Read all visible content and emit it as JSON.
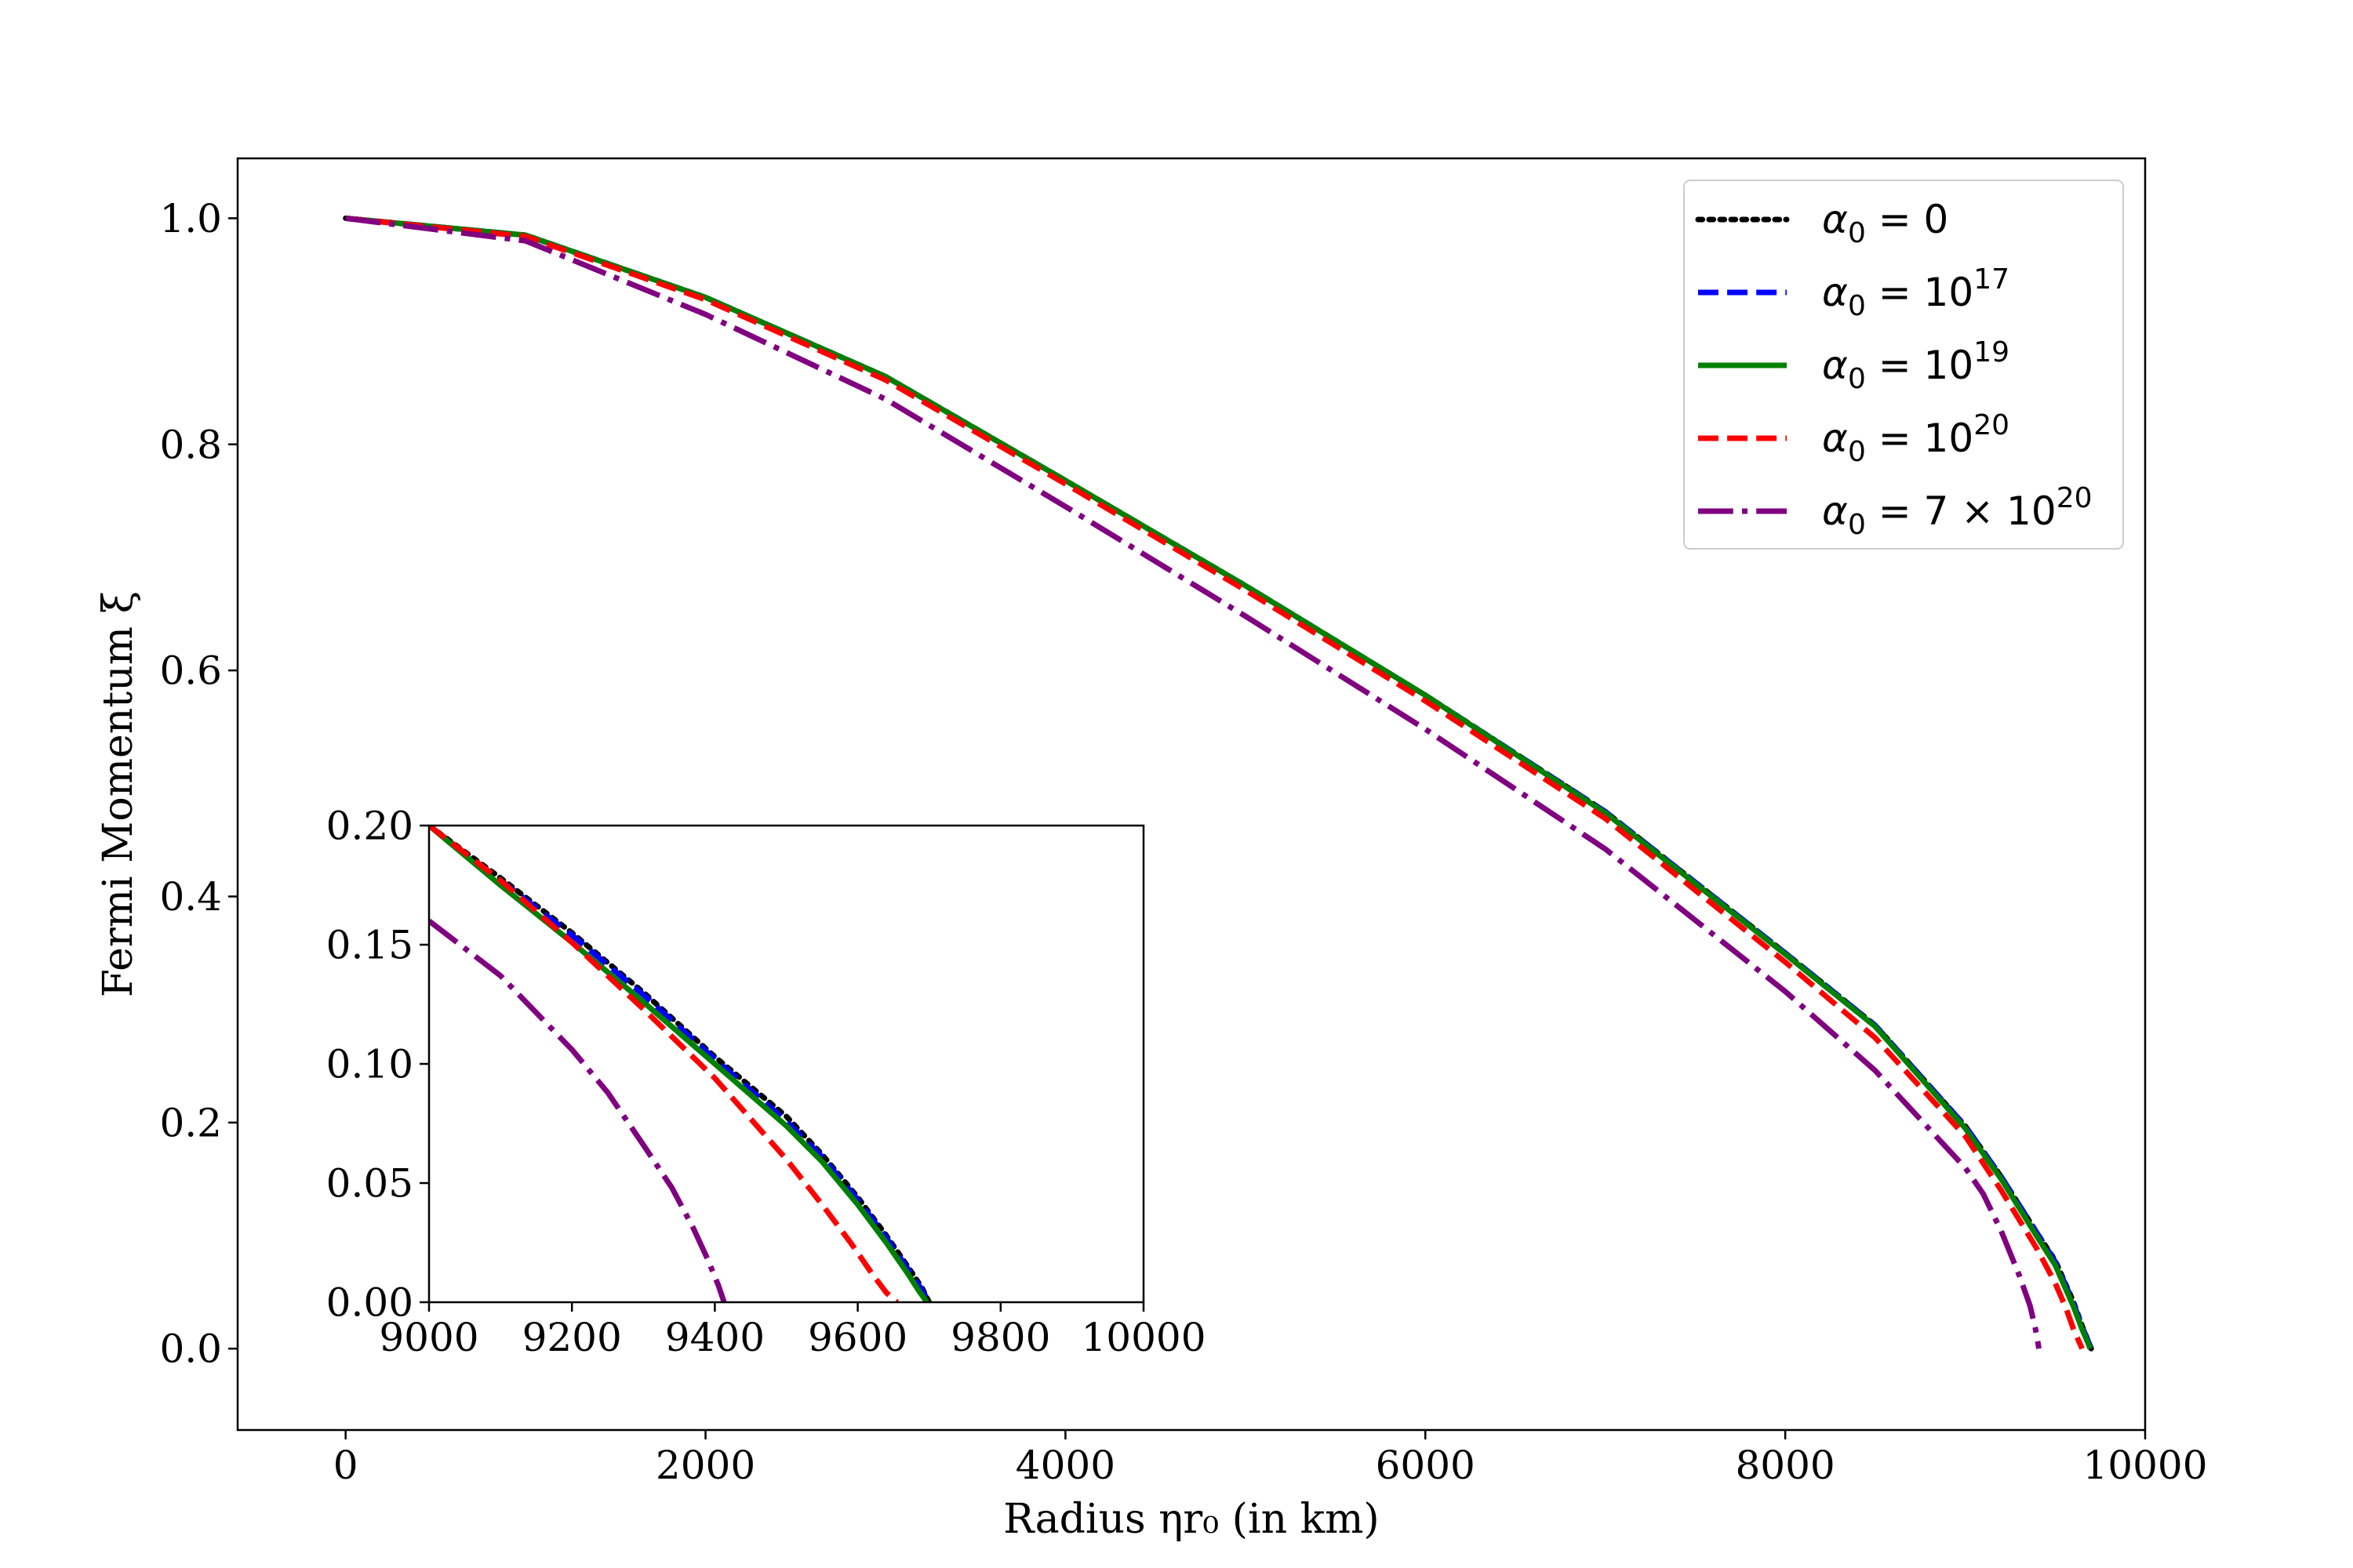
{
  "chart_data": [
    {
      "type": "line",
      "role": "main",
      "xlabel": "Radius ηr₀ (in km)",
      "ylabel": "Fermi Momentum ξ",
      "xlim": [
        -600,
        10000
      ],
      "ylim": [
        -0.072,
        1.053
      ],
      "xticks": [
        0,
        2000,
        4000,
        6000,
        8000,
        10000
      ],
      "xtick_labels": [
        "0",
        "2000",
        "4000",
        "6000",
        "8000",
        "10000"
      ],
      "yticks": [
        0.0,
        0.2,
        0.4,
        0.6,
        0.8,
        1.0
      ],
      "ytick_labels": [
        "0.0",
        "0.2",
        "0.4",
        "0.6",
        "0.8",
        "1.0"
      ],
      "grid": false,
      "legend": "top-right",
      "series": [
        {
          "name": "α₀ = 0",
          "legend_base": "α",
          "legend_sub": "0",
          "legend_rest": " = 0",
          "legend_sup": "",
          "color": "#000000",
          "style": "dotted",
          "x": [
            0,
            1000,
            2000,
            3000,
            4000,
            5000,
            6000,
            7000,
            8000,
            8500,
            9000,
            9200,
            9400,
            9500,
            9600,
            9650,
            9680,
            9700
          ],
          "y": [
            1.0,
            0.985,
            0.93,
            0.86,
            0.768,
            0.675,
            0.578,
            0.475,
            0.35,
            0.286,
            0.197,
            0.152,
            0.102,
            0.078,
            0.042,
            0.02,
            0.008,
            0.0
          ]
        },
        {
          "name": "α₀ = 10¹⁷",
          "legend_base": "α",
          "legend_sub": "0",
          "legend_rest": " = 10",
          "legend_sup": "17",
          "color": "#0000ff",
          "style": "dashed",
          "x": [
            0,
            1000,
            2000,
            3000,
            4000,
            5000,
            6000,
            7000,
            8000,
            8500,
            9000,
            9200,
            9400,
            9500,
            9600,
            9650,
            9680,
            9700
          ],
          "y": [
            1.0,
            0.985,
            0.93,
            0.86,
            0.768,
            0.675,
            0.578,
            0.475,
            0.35,
            0.286,
            0.197,
            0.152,
            0.102,
            0.077,
            0.041,
            0.019,
            0.008,
            0.0
          ]
        },
        {
          "name": "α₀ = 10¹⁹",
          "legend_base": "α",
          "legend_sub": "0",
          "legend_rest": " = 10",
          "legend_sup": "19",
          "color": "#008000",
          "style": "solid",
          "x": [
            0,
            1000,
            2000,
            3000,
            4000,
            5000,
            6000,
            7000,
            8000,
            8500,
            9000,
            9200,
            9400,
            9500,
            9600,
            9650,
            9680,
            9695
          ],
          "y": [
            1.0,
            0.985,
            0.93,
            0.86,
            0.768,
            0.675,
            0.578,
            0.474,
            0.349,
            0.285,
            0.195,
            0.15,
            0.099,
            0.074,
            0.038,
            0.017,
            0.006,
            0.0
          ]
        },
        {
          "name": "α₀ = 10²⁰",
          "legend_base": "α",
          "legend_sub": "0",
          "legend_rest": " = 10",
          "legend_sup": "20",
          "color": "#ff0000",
          "style": "dashed",
          "x": [
            0,
            1000,
            2000,
            3000,
            4000,
            5000,
            6000,
            7000,
            8000,
            8500,
            9000,
            9200,
            9400,
            9500,
            9560,
            9600,
            9630,
            9650
          ],
          "y": [
            1.0,
            0.984,
            0.928,
            0.857,
            0.765,
            0.671,
            0.573,
            0.469,
            0.342,
            0.275,
            0.188,
            0.14,
            0.088,
            0.058,
            0.036,
            0.018,
            0.007,
            0.0
          ]
        },
        {
          "name": "α₀ = 7 × 10²⁰",
          "legend_base": "α",
          "legend_sub": "0",
          "legend_rest": " = 7 × 10",
          "legend_sup": "20",
          "color": "#800080",
          "style": "dashdot",
          "x": [
            0,
            1000,
            2000,
            3000,
            4000,
            5000,
            6000,
            7000,
            8000,
            8500,
            9000,
            9100,
            9200,
            9300,
            9360,
            9390,
            9410
          ],
          "y": [
            1.0,
            0.98,
            0.915,
            0.84,
            0.745,
            0.648,
            0.548,
            0.442,
            0.316,
            0.246,
            0.16,
            0.137,
            0.104,
            0.065,
            0.038,
            0.018,
            0.0
          ]
        }
      ]
    },
    {
      "type": "line",
      "role": "inset",
      "xlim": [
        9000,
        10000
      ],
      "ylim": [
        0.0,
        0.2
      ],
      "xticks": [
        9000,
        9200,
        9400,
        9600,
        9800,
        10000
      ],
      "xtick_labels": [
        "9000",
        "9200",
        "9400",
        "9600",
        "9800",
        "10000"
      ],
      "yticks": [
        0.0,
        0.05,
        0.1,
        0.15,
        0.2
      ],
      "ytick_labels": [
        "0.00",
        "0.05",
        "0.10",
        "0.15",
        "0.20"
      ],
      "grid": false,
      "series": [
        {
          "color": "#000000",
          "style": "dotted",
          "x": [
            9000,
            9100,
            9200,
            9300,
            9400,
            9500,
            9550,
            9600,
            9640,
            9670,
            9690,
            9700
          ],
          "y": [
            0.2,
            0.178,
            0.155,
            0.13,
            0.103,
            0.078,
            0.062,
            0.044,
            0.028,
            0.015,
            0.006,
            0.0
          ]
        },
        {
          "color": "#0000ff",
          "style": "dashed",
          "x": [
            9000,
            9100,
            9200,
            9300,
            9400,
            9500,
            9550,
            9600,
            9640,
            9670,
            9690,
            9700
          ],
          "y": [
            0.2,
            0.177,
            0.154,
            0.129,
            0.102,
            0.076,
            0.061,
            0.043,
            0.027,
            0.014,
            0.005,
            0.0
          ]
        },
        {
          "color": "#008000",
          "style": "solid",
          "x": [
            9000,
            9100,
            9200,
            9300,
            9400,
            9500,
            9550,
            9600,
            9640,
            9670,
            9685,
            9697
          ],
          "y": [
            0.2,
            0.175,
            0.151,
            0.126,
            0.1,
            0.074,
            0.059,
            0.041,
            0.025,
            0.012,
            0.005,
            0.0
          ]
        },
        {
          "color": "#ff0000",
          "style": "dashed",
          "x": [
            9000,
            9100,
            9200,
            9300,
            9400,
            9500,
            9550,
            9590,
            9620,
            9640,
            9655
          ],
          "y": [
            0.2,
            0.177,
            0.151,
            0.123,
            0.094,
            0.06,
            0.041,
            0.025,
            0.012,
            0.004,
            0.0
          ]
        },
        {
          "color": "#800080",
          "style": "dashdot",
          "x": [
            9000,
            9100,
            9200,
            9250,
            9300,
            9340,
            9370,
            9390,
            9405,
            9413
          ],
          "y": [
            0.16,
            0.137,
            0.106,
            0.088,
            0.066,
            0.048,
            0.031,
            0.018,
            0.007,
            0.0
          ]
        }
      ]
    }
  ]
}
